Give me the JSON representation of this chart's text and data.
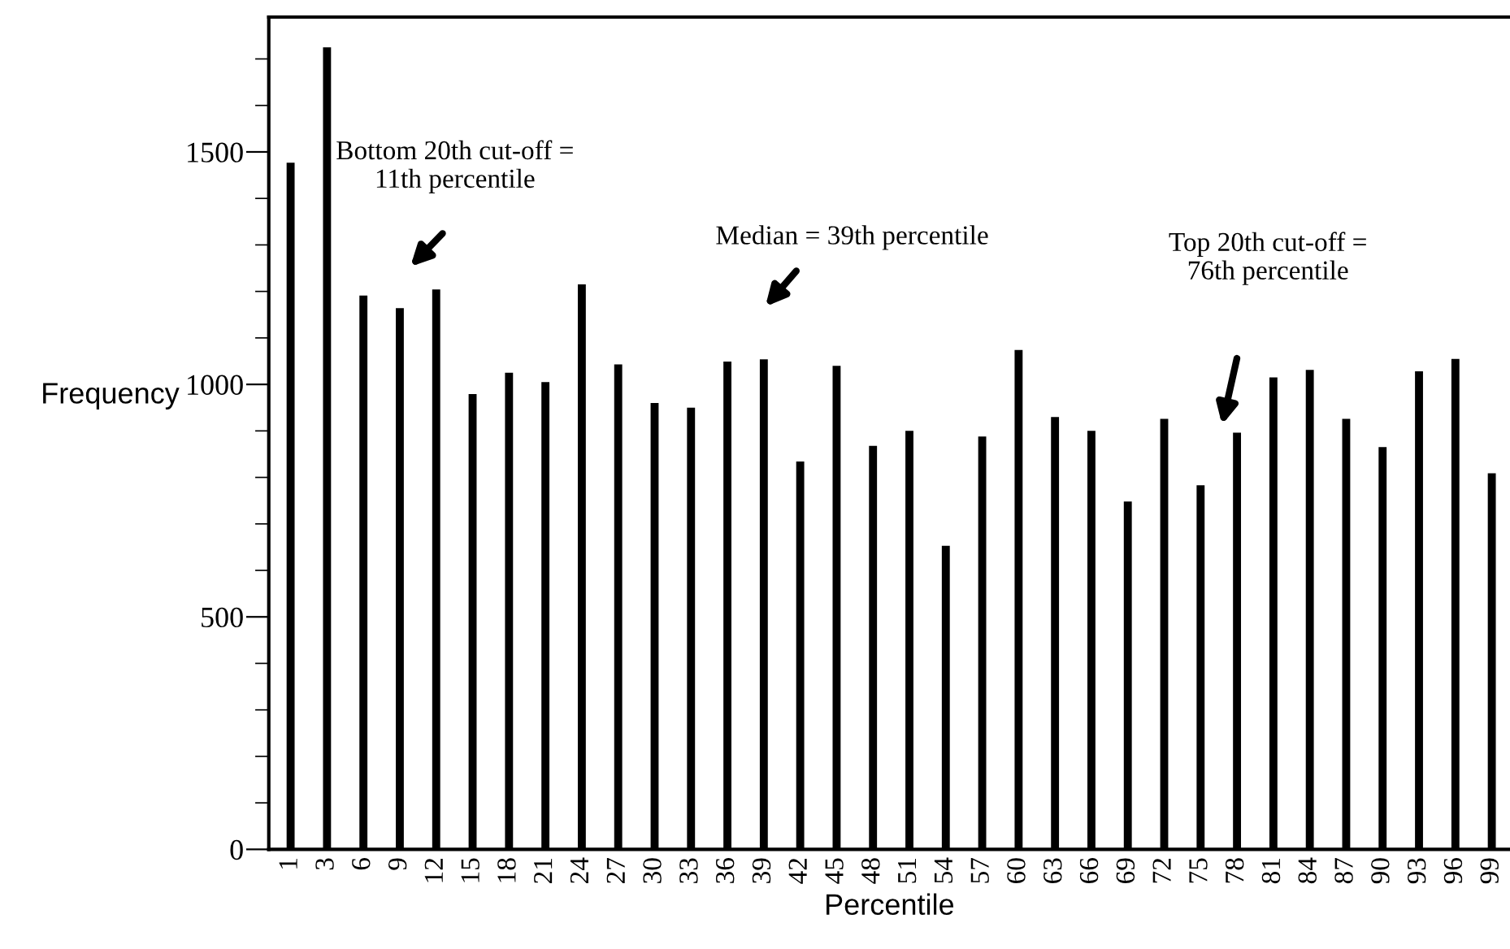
{
  "chart_data": {
    "type": "bar",
    "xlabel": "Percentile",
    "ylabel": "Frequency",
    "categories": [
      "1",
      "3",
      "6",
      "9",
      "12",
      "15",
      "18",
      "21",
      "24",
      "27",
      "30",
      "33",
      "36",
      "39",
      "42",
      "45",
      "48",
      "51",
      "54",
      "57",
      "60",
      "63",
      "66",
      "69",
      "72",
      "75",
      "78",
      "81",
      "84",
      "87",
      "90",
      "93",
      "96",
      "99"
    ],
    "values": [
      1477,
      1725,
      1191,
      1164,
      1204,
      979,
      1025,
      1005,
      1215,
      1043,
      960,
      950,
      1049,
      1054,
      834,
      1040,
      868,
      900,
      653,
      888,
      1074,
      930,
      900,
      748,
      926,
      783,
      896,
      1015,
      1031,
      926,
      865,
      1028,
      1055,
      809
    ],
    "color": "#000000",
    "ylim": [
      0,
      1790
    ],
    "yticks": [
      0,
      500,
      1000,
      1500
    ],
    "grid": false,
    "legend": false,
    "annotations": [
      "Bottom 20th cut-off =\n11th percentile",
      "Median = 39th percentile",
      "Top 20th cut-off =\n76th percentile"
    ]
  }
}
